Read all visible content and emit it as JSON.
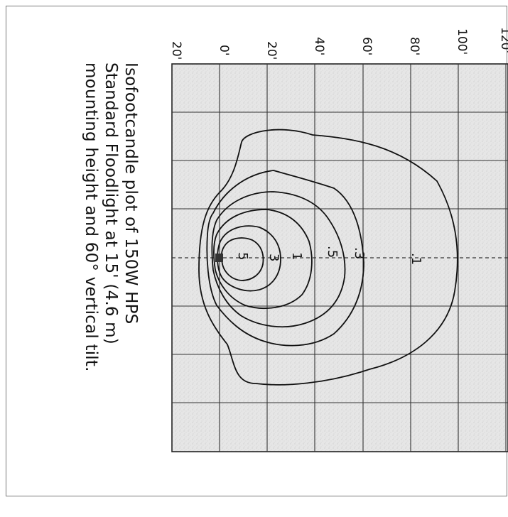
{
  "diagram": {
    "axis_ticks": [
      "20'",
      "0'",
      "20'",
      "40'",
      "60'",
      "80'",
      "100'",
      "120'"
    ],
    "contour_labels": [
      ".1",
      ".3",
      ".5",
      "1",
      "3",
      "5"
    ],
    "caption_lines": [
      "Isofootcandle plot of 150W HPS",
      "Standard Floodlight at 15' (4.6 m)",
      "mounting height and 60° vertical tilt."
    ]
  }
}
